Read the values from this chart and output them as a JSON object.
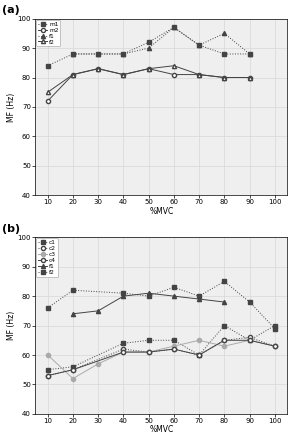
{
  "panel_a": {
    "m1": {
      "x": [
        10,
        20,
        30,
        40,
        50,
        60,
        70,
        80,
        90
      ],
      "y": [
        84,
        88,
        88,
        88,
        92,
        97,
        91,
        88,
        88
      ],
      "marker": "s",
      "filled": true,
      "ls": ":",
      "color": "#444444"
    },
    "m2": {
      "x": [
        10,
        20,
        30,
        40,
        50,
        60,
        70,
        80,
        90
      ],
      "y": [
        72,
        81,
        83,
        81,
        83,
        81,
        81,
        80,
        80
      ],
      "marker": "o",
      "filled": false,
      "ls": "-",
      "color": "#444444"
    },
    "f1": {
      "x": [
        20,
        30,
        40,
        50,
        60,
        70,
        80,
        90
      ],
      "y": [
        88,
        88,
        88,
        90,
        97,
        91,
        95,
        88
      ],
      "marker": "^",
      "filled": true,
      "ls": ":",
      "color": "#444444"
    },
    "f2": {
      "x": [
        10,
        20,
        30,
        40,
        50,
        60,
        70,
        80,
        90
      ],
      "y": [
        75,
        81,
        83,
        81,
        83,
        84,
        81,
        80,
        80
      ],
      "marker": "^",
      "filled": false,
      "ls": "-",
      "color": "#444444"
    }
  },
  "panel_b": {
    "c1": {
      "x": [
        10,
        20,
        40,
        50,
        60,
        70,
        80,
        90,
        100
      ],
      "y": [
        55,
        56,
        64,
        65,
        65,
        60,
        70,
        65,
        70
      ],
      "marker": "s",
      "filled": true,
      "ls": ":",
      "color": "#444444"
    },
    "c2": {
      "x": [
        10,
        20,
        40,
        50,
        60,
        70,
        80,
        90,
        100
      ],
      "y": [
        53,
        55,
        62,
        61,
        62,
        60,
        65,
        66,
        63
      ],
      "marker": "o",
      "filled": false,
      "ls": ":",
      "color": "#444444"
    },
    "c3": {
      "x": [
        10,
        20,
        30,
        40,
        50,
        60,
        70,
        80,
        90,
        100
      ],
      "y": [
        60,
        52,
        57,
        61,
        61,
        63,
        65,
        63,
        65,
        63
      ],
      "marker": "o",
      "filled": true,
      "ls": "-",
      "color": "#aaaaaa"
    },
    "c4": {
      "x": [
        10,
        20,
        40,
        50,
        60,
        70,
        80,
        90,
        100
      ],
      "y": [
        53,
        55,
        61,
        61,
        62,
        60,
        65,
        65,
        63
      ],
      "marker": "o",
      "filled": false,
      "ls": "-",
      "color": "#444444"
    },
    "f1": {
      "x": [
        20,
        30,
        40,
        50,
        60,
        70,
        80
      ],
      "y": [
        74,
        75,
        80,
        81,
        80,
        79,
        78
      ],
      "marker": "^",
      "filled": true,
      "ls": "-",
      "color": "#444444"
    },
    "f2": {
      "x": [
        10,
        20,
        40,
        50,
        60,
        70,
        80,
        90,
        100
      ],
      "y": [
        76,
        82,
        81,
        80,
        83,
        80,
        85,
        78,
        69
      ],
      "marker": "s",
      "filled": true,
      "ls": ":",
      "color": "#444444"
    }
  },
  "panel_a_legend": [
    "m1",
    "m2",
    "f1",
    "f2"
  ],
  "panel_b_legend": [
    "c1",
    "c2",
    "c3",
    "c4",
    "f1",
    "f2"
  ],
  "ylim": [
    40,
    100
  ],
  "yticks": [
    40,
    50,
    60,
    70,
    80,
    90,
    100
  ],
  "xticks": [
    10,
    20,
    30,
    40,
    50,
    60,
    70,
    80,
    90,
    100
  ],
  "xlabel": "%MVC",
  "ylabel": "MF (Hz)",
  "grid_color": "#d8d8d8",
  "bg_color": "#efefef"
}
